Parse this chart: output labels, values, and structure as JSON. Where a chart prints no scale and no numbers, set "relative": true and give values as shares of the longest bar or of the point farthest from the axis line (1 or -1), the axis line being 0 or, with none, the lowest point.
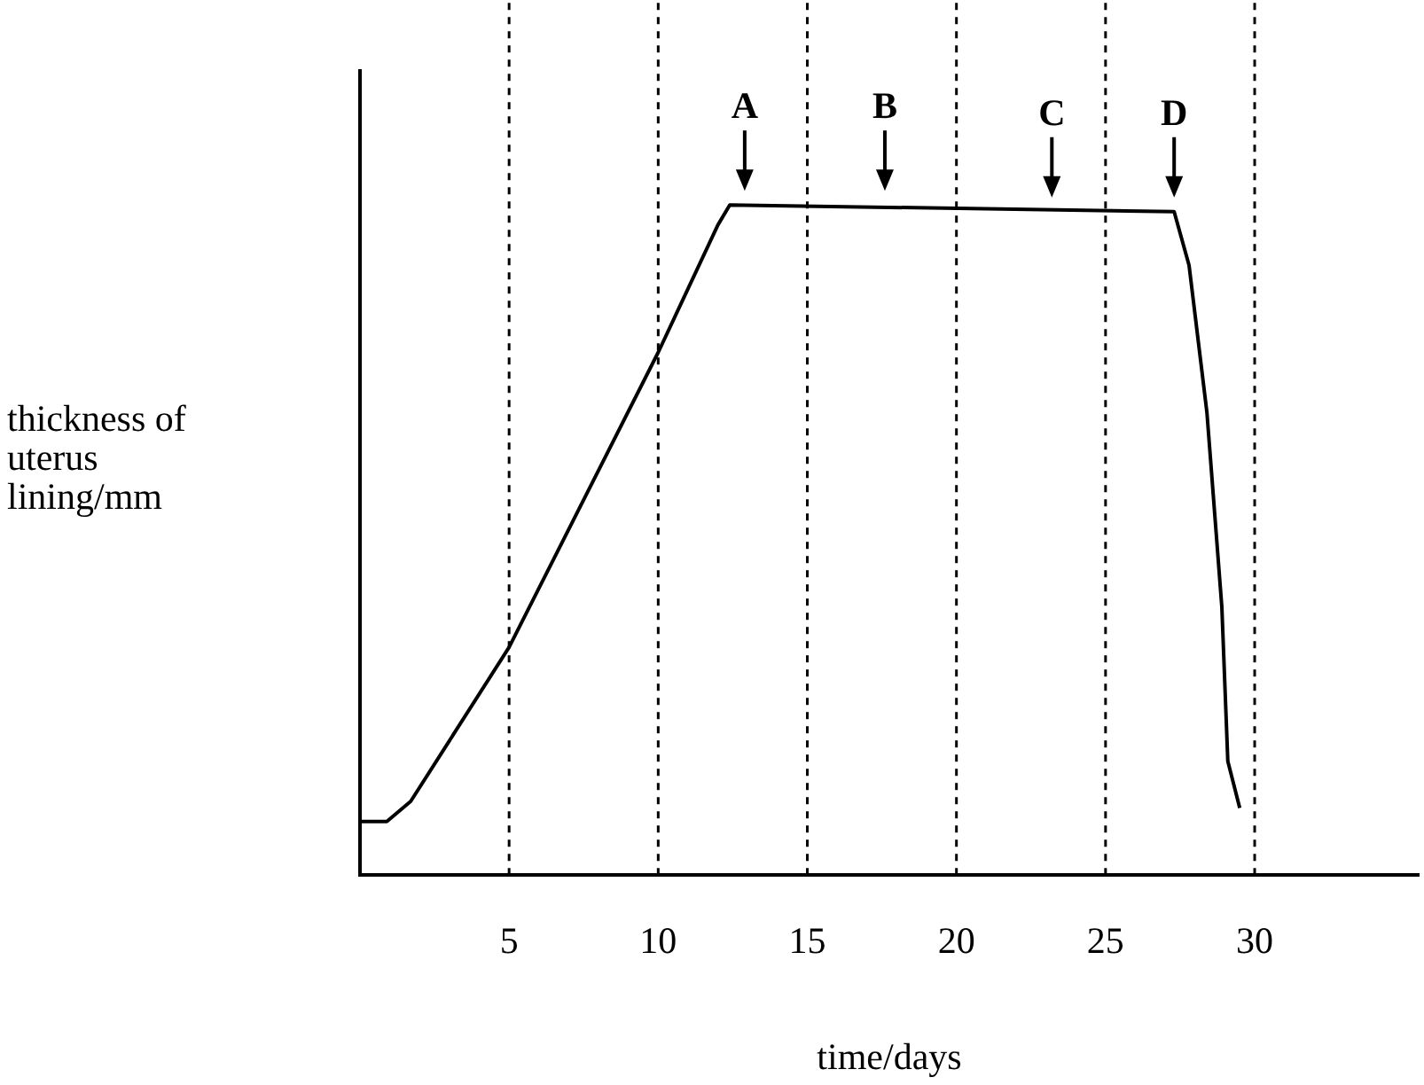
{
  "chart_data": {
    "type": "line",
    "relative": true,
    "xlabel": "time/days",
    "ylabel": "thickness of uterus lining/mm",
    "xlim": [
      0,
      35.5
    ],
    "xticks": [
      5,
      10,
      15,
      20,
      25,
      30
    ],
    "grid": "x",
    "legend": false,
    "marker": "none",
    "line_style": "solid",
    "series": [
      {
        "color": "#000000",
        "x": [
          0,
          0.9,
          1.7,
          5,
          10,
          12,
          12.4,
          27.3,
          27.8,
          28.4,
          28.9,
          29.1,
          29.5
        ],
        "values": [
          0.08,
          0.08,
          0.11,
          0.34,
          0.78,
          0.97,
          1,
          0.99,
          0.91,
          0.69,
          0.4,
          0.17,
          0.1
        ]
      }
    ],
    "annotations": [
      {
        "text": "A",
        "x": 12.9,
        "y": 1
      },
      {
        "text": "B",
        "x": 17.6,
        "y": 1
      },
      {
        "text": "C",
        "x": 23.2,
        "y": 0.99
      },
      {
        "text": "D",
        "x": 27.3,
        "y": 0.99
      }
    ]
  }
}
